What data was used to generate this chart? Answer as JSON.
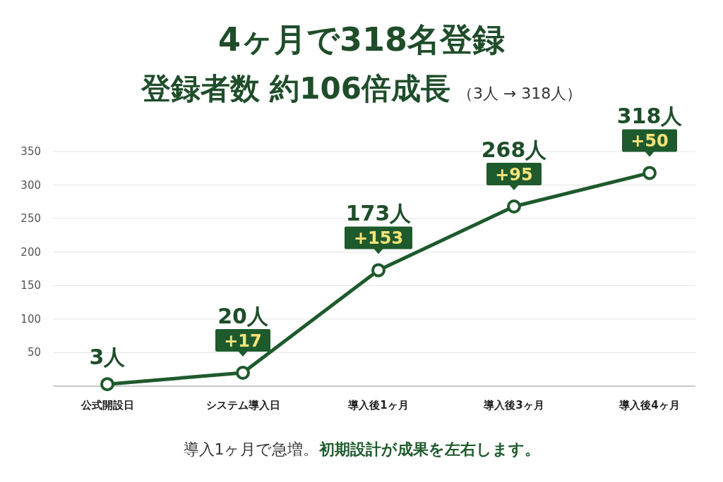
{
  "chart_data": {
    "type": "line",
    "title": "4ヶ月で318名登録",
    "subtitle": "登録者数 約106倍成長",
    "categories": [
      "公式開設日",
      "システム導入日",
      "導入後1ヶ月",
      "導入後3ヶ月",
      "導入後4ヶ月"
    ],
    "values": [
      3,
      20,
      173,
      268,
      318
    ],
    "value_labels": [
      "3人",
      "20人",
      "173人",
      "268人",
      "318人"
    ],
    "color": "#1e5a2c",
    "marker": "circle",
    "grid": "y",
    "ylim": [
      0,
      350
    ],
    "yticks": [
      50,
      100,
      150,
      200,
      250,
      300,
      350
    ],
    "annotations": [
      "（3人 → 318人）",
      {
        "text": "+17",
        "x": "システム導入日",
        "y": 20
      },
      {
        "text": "+153",
        "x": "導入後1ヶ月",
        "y": 173
      },
      {
        "text": "+95",
        "x": "導入後3ヶ月",
        "y": 268
      },
      {
        "text": "+50",
        "x": "導入後4ヶ月",
        "y": 318
      },
      "導入1ヶ月で急増。**初期設計が成果を左右します。**"
    ]
  }
}
